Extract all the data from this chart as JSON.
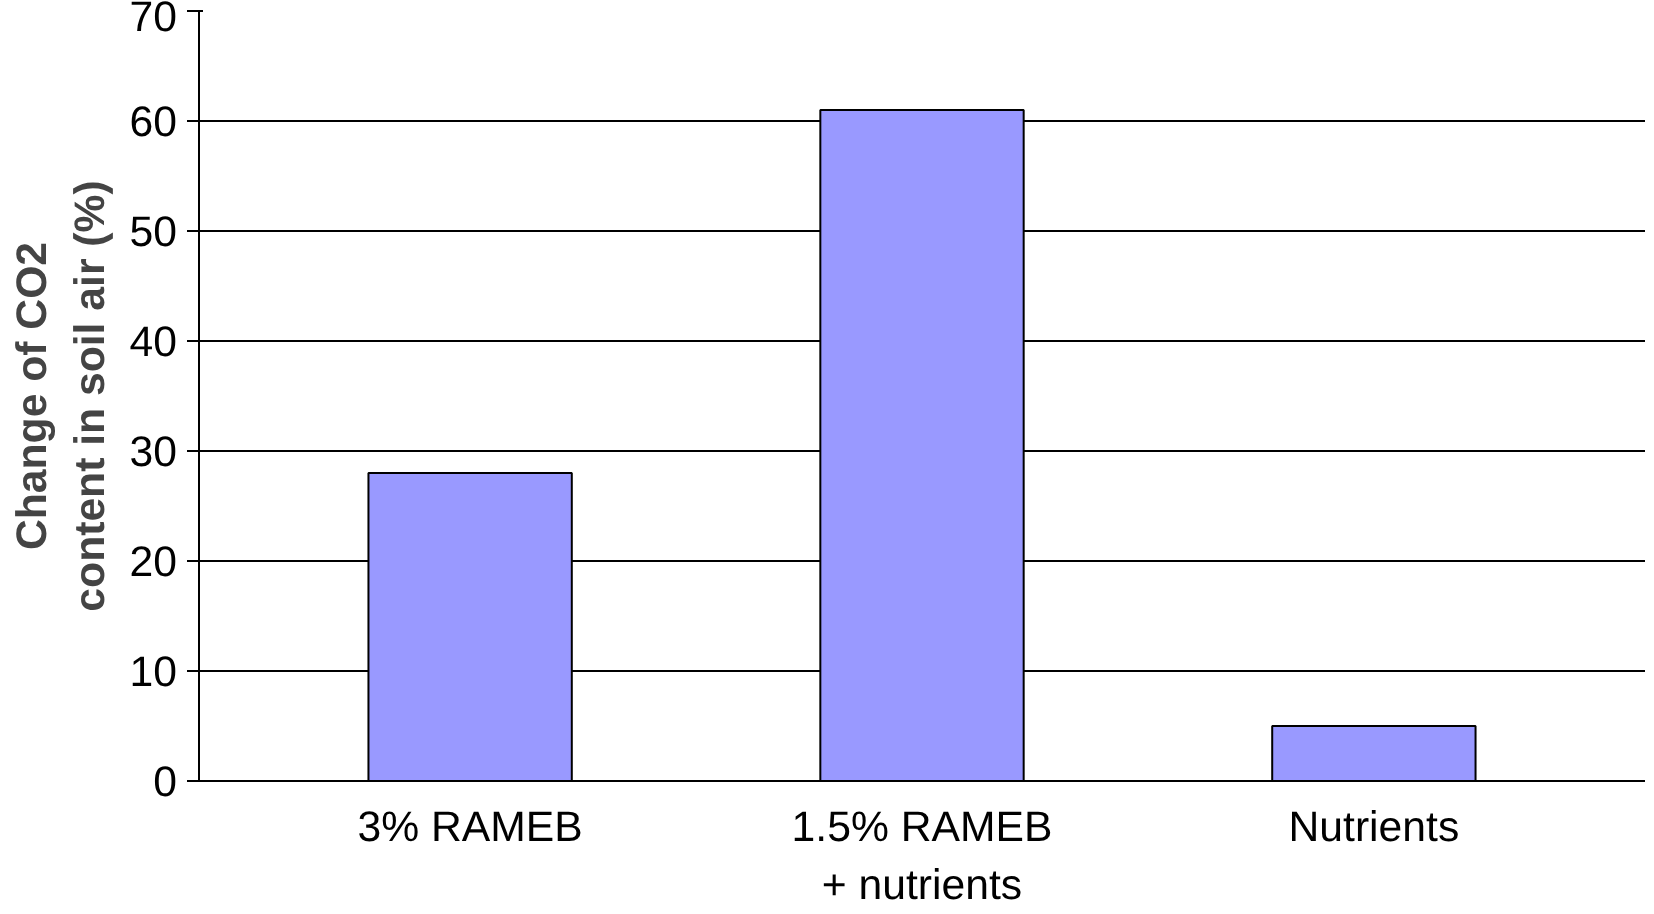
{
  "chart_data": {
    "type": "bar",
    "ylabel": "Change of CO2\ncontent in soil air (%)",
    "categories": [
      "3% RAMEB",
      "1.5% RAMEB\n+ nutrients",
      "Nutrients"
    ],
    "values": [
      28,
      61,
      5
    ],
    "color": "#9999ff",
    "ylim": [
      0,
      70
    ],
    "yticks": [
      0,
      10,
      20,
      30,
      40,
      50,
      60,
      70
    ],
    "grid": "y"
  }
}
